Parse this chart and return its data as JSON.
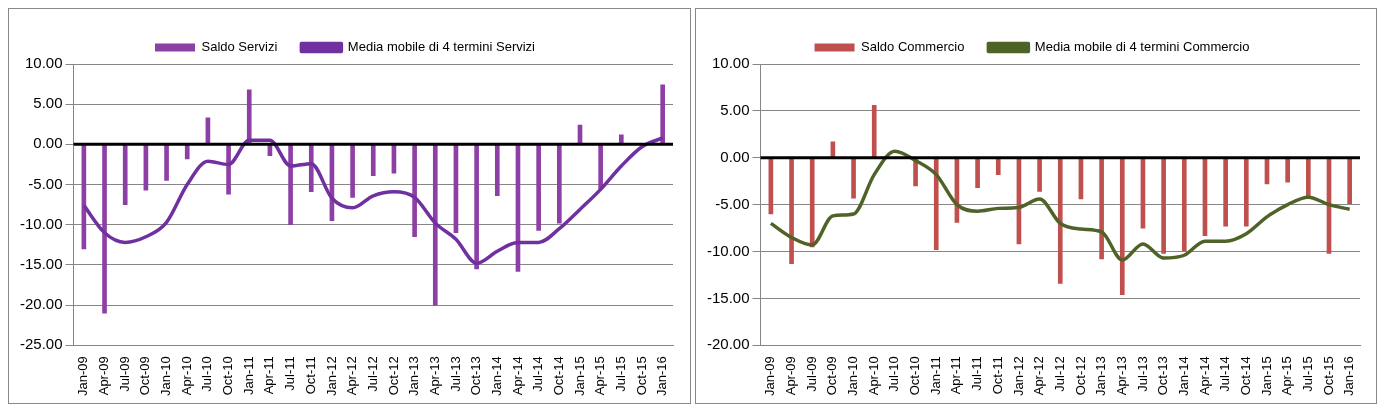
{
  "chart_data": [
    {
      "type": "bar",
      "categories": [
        "Jan-09",
        "Apr-09",
        "Jul-09",
        "Oct-09",
        "Jan-10",
        "Apr-10",
        "Jul-10",
        "Oct-10",
        "Jan-11",
        "Apr-11",
        "Jul-11",
        "Oct-11",
        "Jan-12",
        "Apr-12",
        "Jul-12",
        "Oct-12",
        "Jan-13",
        "Apr-13",
        "Jul-13",
        "Oct-13",
        "Jan-14",
        "Apr-14",
        "Jul-14",
        "Oct-14",
        "Jan-15",
        "Apr-15",
        "Jul-15",
        "Oct-15",
        "Jan-16"
      ],
      "series": [
        {
          "name": "Saldo Servizi",
          "color": "#8e3fa6",
          "values": [
            -13,
            -21,
            -7.5,
            -5.7,
            -4.5,
            -1.8,
            3.3,
            -6.2,
            6.8,
            -1.4,
            -10,
            -5.9,
            -9.5,
            -6.6,
            -3.9,
            -3.6,
            -11.5,
            -20,
            -11,
            -15.5,
            -6.4,
            -15.8,
            -10.7,
            -9.8,
            2.4,
            -5.5,
            1.2,
            0,
            7.4
          ]
        },
        {
          "name": "Media mobile di 4 termini Servizi",
          "type": "line",
          "color": "#7030a0",
          "values": [
            -7.6,
            -11,
            -12.2,
            -11.5,
            -9.7,
            -5,
            -2.1,
            -2.5,
            0.5,
            0.5,
            -2.7,
            -2.4,
            -6.7,
            -7.9,
            -6.4,
            -5.9,
            -6.6,
            -9.8,
            -11.8,
            -14.8,
            -13.3,
            -12.2,
            -12.2,
            -10.5,
            -8.1,
            -5.6,
            -2.7,
            -0.3,
            0.8
          ]
        }
      ],
      "ylim": [
        -25,
        10
      ],
      "yticks": [
        {
          "value": -25,
          "label": "-25.00"
        },
        {
          "value": -20,
          "label": "-20.00"
        },
        {
          "value": -15,
          "label": "-15.00"
        },
        {
          "value": -10,
          "label": "-10.00"
        },
        {
          "value": -5,
          "label": "-5.00"
        },
        {
          "value": 0,
          "label": "0.00"
        },
        {
          "value": 5,
          "label": "5.00"
        },
        {
          "value": 10,
          "label": "10.00"
        }
      ],
      "grid": "y",
      "legend": "top",
      "marker": "none",
      "ref_lines": [
        {
          "axis": "y",
          "value": 0,
          "color": "#000000"
        }
      ]
    },
    {
      "type": "bar",
      "categories": [
        "Jan-09",
        "Apr-09",
        "Jul-09",
        "Oct-09",
        "Jan-10",
        "Apr-10",
        "Jul-10",
        "Oct-10",
        "Jan-11",
        "Apr-11",
        "Jul-11",
        "Oct-11",
        "Jan-12",
        "Apr-12",
        "Jul-12",
        "Oct-12",
        "Jan-13",
        "Apr-13",
        "Jul-13",
        "Oct-13",
        "Jan-14",
        "Apr-14",
        "Jul-14",
        "Oct-14",
        "Jan-15",
        "Apr-15",
        "Jul-15",
        "Oct-15",
        "Jan-16"
      ],
      "series": [
        {
          "name": "Saldo Commercio",
          "color": "#c0504d",
          "values": [
            -6,
            -11.3,
            -9.5,
            1.7,
            -4.3,
            5.6,
            0,
            -3,
            -9.8,
            -6.9,
            -3.2,
            -1.8,
            -9.2,
            -3.6,
            -13.4,
            -4.4,
            -10.8,
            -14.6,
            -7.5,
            -10.2,
            -9.9,
            -8.3,
            -7.3,
            -7.3,
            -2.8,
            -2.6,
            -4.3,
            -10.2,
            -4.9
          ]
        },
        {
          "name": "Media mobile di 4 termini Commercio",
          "type": "line",
          "color": "#4f6228",
          "values": [
            -7,
            -8.5,
            -9.3,
            -6.2,
            -6,
            -1.8,
            0.7,
            -0.3,
            -1.8,
            -5,
            -5.7,
            -5.4,
            -5.3,
            -4.4,
            -7,
            -7.6,
            -7.9,
            -10.9,
            -9.2,
            -10.7,
            -10.4,
            -8.9,
            -8.9,
            -8.1,
            -6.3,
            -5,
            -4.2,
            -5,
            -5.5
          ]
        }
      ],
      "ylim": [
        -20,
        10
      ],
      "yticks": [
        {
          "value": -20,
          "label": "-20.00"
        },
        {
          "value": -15,
          "label": "-15.00"
        },
        {
          "value": -10,
          "label": "-10.00"
        },
        {
          "value": -5,
          "label": "-5.00"
        },
        {
          "value": 0,
          "label": "0.00"
        },
        {
          "value": 5,
          "label": "5.00"
        },
        {
          "value": 10,
          "label": "10.00"
        }
      ],
      "grid": "y",
      "legend": "top",
      "marker": "none",
      "ref_lines": [
        {
          "axis": "y",
          "value": 0,
          "color": "#000000"
        }
      ]
    }
  ]
}
